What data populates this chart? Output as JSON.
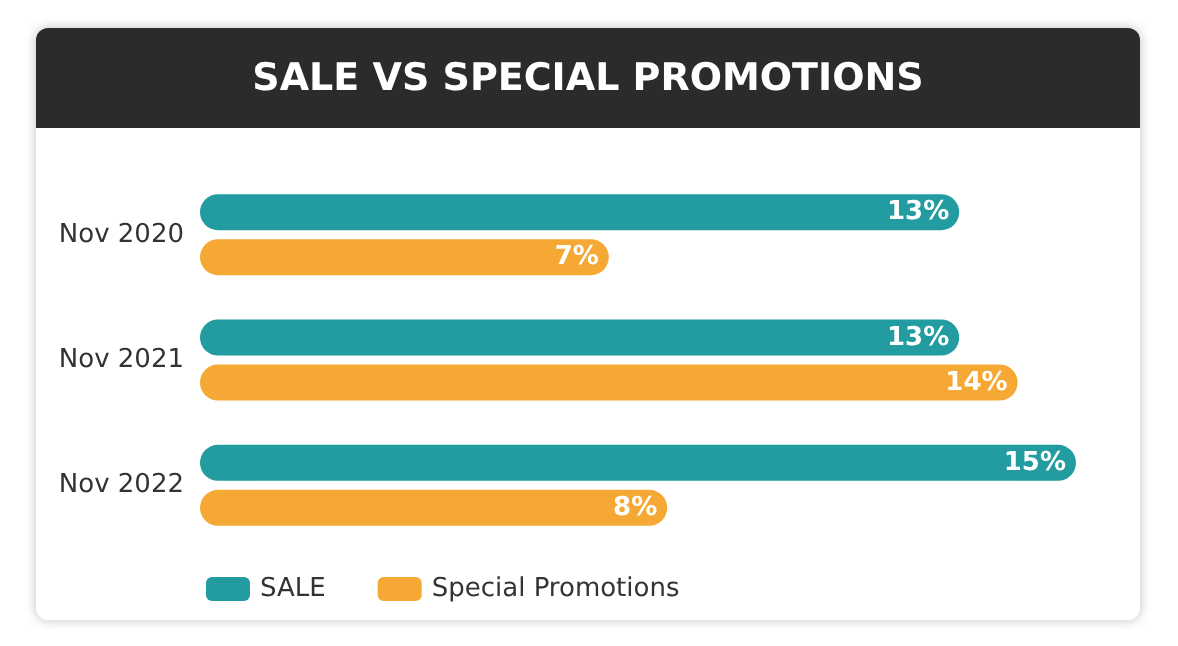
{
  "chart_data": {
    "type": "bar",
    "orientation": "horizontal",
    "title": "SALE VS SPECIAL PROMOTIONS",
    "categories": [
      "Nov 2020",
      "Nov 2021",
      "Nov 2022"
    ],
    "series": [
      {
        "name": "SALE",
        "color": "#229ca0",
        "values": [
          13,
          13,
          15
        ],
        "value_labels": [
          "13%",
          "13%",
          "15%"
        ]
      },
      {
        "name": "Special Promotions",
        "color": "#f5a833",
        "values": [
          7,
          14,
          8
        ],
        "value_labels": [
          "7%",
          "14%",
          "8%"
        ]
      }
    ],
    "legend": "bottom left"
  }
}
